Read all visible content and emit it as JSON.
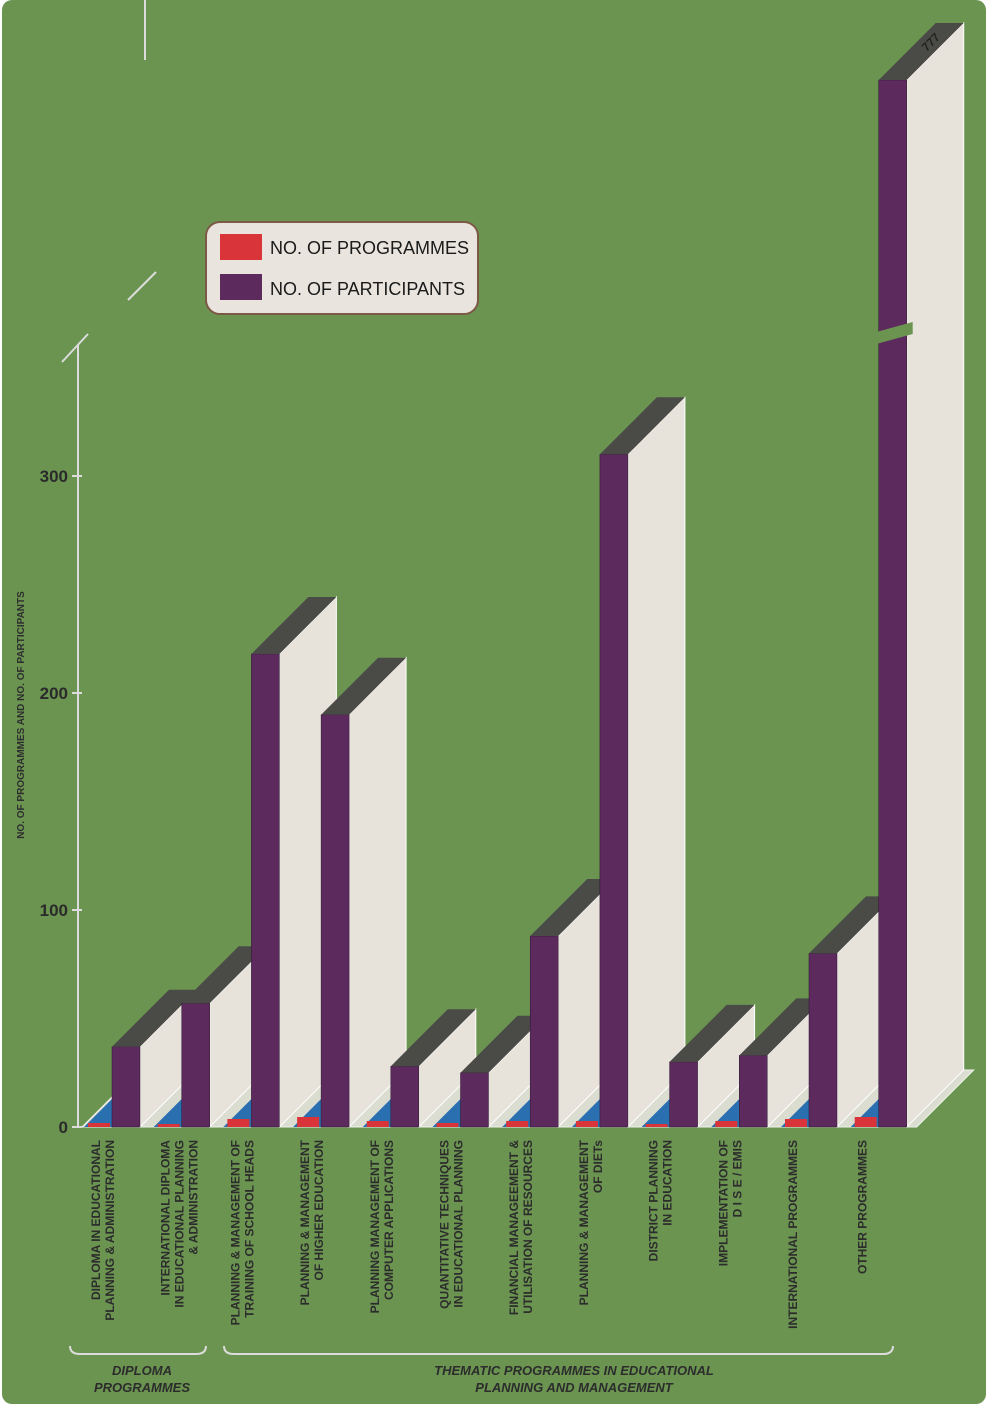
{
  "chart_data": {
    "type": "bar",
    "title": "",
    "xlabel": "",
    "ylabel": "NO. OF PROGRAMMES AND NO. OF PARTICIPANTS",
    "ylim": [
      0,
      350
    ],
    "yticks": [
      "0",
      "100",
      "200",
      "300"
    ],
    "axis_break": true,
    "categories": [
      [
        "DIPLOMA IN EDUCATIONAL",
        "PLANNING & ADMINISTRATION"
      ],
      [
        "INTERNATIONAL DIPLOMA",
        "IN EDUCATIONAL PLANNING",
        "& ADMINISTRATION"
      ],
      [
        "PLANNING & MANAGEMENT OF",
        "TRAINING OF SCHOOL HEADS"
      ],
      [
        "PLANNING & MANAGEMENT",
        "OF HIGHER EDUCATION"
      ],
      [
        "PLANNING MANAGEMENT OF",
        "COMPUTER APPLICATIONS"
      ],
      [
        "QUANTITATIVE TECHNIQUES",
        "IN EDUCATIONAL PLANNING"
      ],
      [
        "FINANCIAL MANAGEEMENT &",
        "UTILISATION OF RESOURCES"
      ],
      [
        "PLANNING & MANAGEMENT",
        "OF DIETs"
      ],
      [
        "DISTRICT PLANNING",
        "IN EDUCATION"
      ],
      [
        "IMPLEMENTATION OF",
        "D I S E / EMIS"
      ],
      [
        "INTERNATIONAL PROGRAMMES"
      ],
      [
        "OTHER PROGRAMMES"
      ]
    ],
    "groups": [
      {
        "label": [
          "DIPLOMA",
          "PROGRAMMES"
        ],
        "start": 0,
        "end": 1
      },
      {
        "label": [
          "THEMATIC PROGRAMMES IN EDUCATIONAL",
          "PLANNING AND MANAGEMENT"
        ],
        "start": 2,
        "end": 11
      }
    ],
    "series": [
      {
        "name": "NO. OF PROGRAMMES",
        "color": "#d9343a",
        "values": [
          2,
          1,
          4,
          5,
          3,
          2,
          3,
          3,
          1,
          3,
          4,
          5
        ]
      },
      {
        "name": "NO. OF PARTICIPANTS",
        "color": "#5c2a5c",
        "values": [
          37,
          57,
          218,
          190,
          28,
          25,
          88,
          310,
          30,
          33,
          80,
          777
        ]
      }
    ],
    "broken_bar_label": "777",
    "legend_position": "upper-left",
    "grid": false,
    "colors": {
      "background": "#6b9451",
      "back_wall": "#e7e2da",
      "bar_top": "#4a4a46",
      "aux_marker": "#2a6fb0"
    }
  }
}
